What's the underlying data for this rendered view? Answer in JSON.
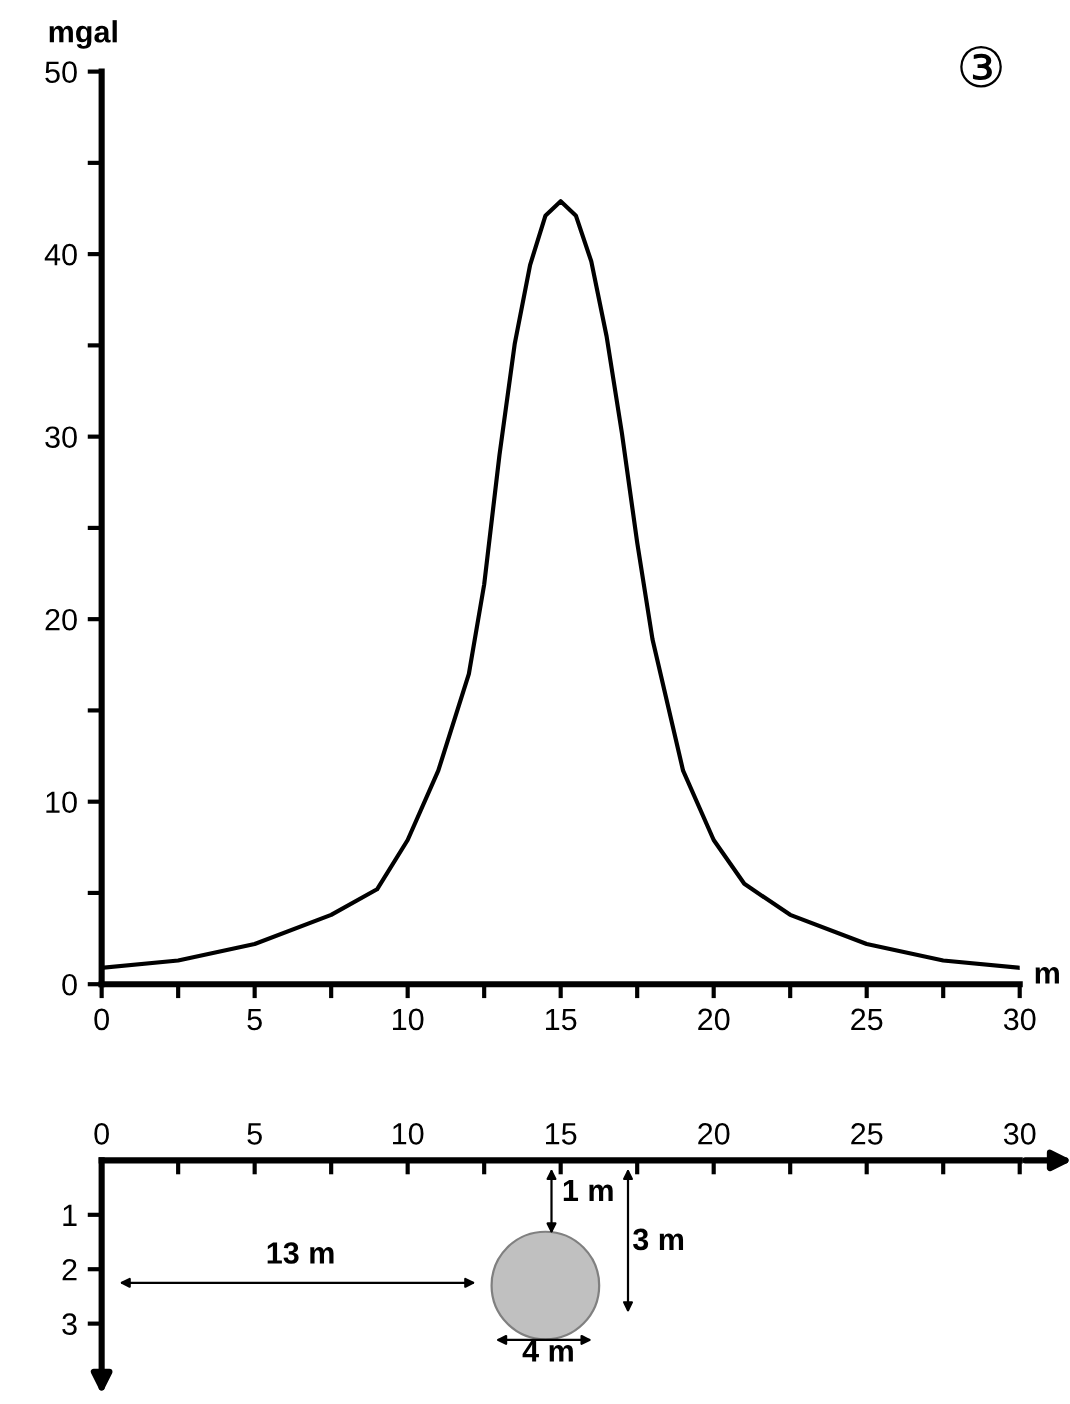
{
  "chart_data": [
    {
      "type": "line",
      "xlabel": "m",
      "ylabel": "mgal",
      "annotations": [
        "③"
      ],
      "x": [
        0,
        2.5,
        5,
        7.5,
        9,
        10,
        11,
        12,
        12.5,
        13,
        13.5,
        14,
        14.5,
        15,
        15.5,
        16,
        16.5,
        17,
        17.5,
        18,
        19,
        20,
        21,
        22.5,
        25,
        27.5,
        30
      ],
      "series": [
        {
          "color": "#000000",
          "values": [
            0.9,
            1.3,
            2.2,
            3.8,
            5.2,
            7.9,
            11.7,
            17,
            21.9,
            29,
            35.1,
            39.4,
            42.1,
            42.9,
            42.1,
            39.6,
            35.5,
            30.2,
            24.2,
            18.9,
            11.7,
            7.9,
            5.5,
            3.8,
            2.2,
            1.3,
            0.9
          ]
        }
      ],
      "xlim": [
        0,
        30
      ],
      "ylim": [
        0,
        50
      ],
      "xticks": [
        0,
        {
          "value": 2.5,
          "label": null
        },
        5,
        {
          "value": 7.5,
          "label": null
        },
        10,
        {
          "value": 12.5,
          "label": null
        },
        15,
        {
          "value": 17.5,
          "label": null
        },
        20,
        {
          "value": 22.5,
          "label": null
        },
        25,
        {
          "value": 27.5,
          "label": null
        },
        30
      ],
      "yticks": [
        0,
        {
          "value": 5,
          "label": null
        },
        10,
        {
          "value": 15,
          "label": null
        },
        20,
        {
          "value": 25,
          "label": null
        },
        30,
        {
          "value": 35,
          "label": null
        },
        40,
        {
          "value": 45,
          "label": null
        },
        50
      ],
      "grid": false,
      "marker": "none",
      "line_style": "solid"
    },
    {
      "type": "scatter",
      "x": [
        14.5
      ],
      "series": [
        {
          "color": "#c0c0c0",
          "values": [
            2.3
          ]
        }
      ],
      "marker": "circle",
      "annotations": [
        "1 m",
        "3 m",
        "13 m",
        "4 m"
      ],
      "xlim": [
        0,
        30
      ],
      "ylim": [
        4,
        0
      ],
      "xticks": [
        0,
        {
          "value": 2.5,
          "label": null
        },
        5,
        {
          "value": 7.5,
          "label": null
        },
        10,
        {
          "value": 12.5,
          "label": null
        },
        15,
        {
          "value": 17.5,
          "label": null
        },
        20,
        {
          "value": 22.5,
          "label": null
        },
        25,
        {
          "value": 27.5,
          "label": null
        },
        30
      ],
      "yticks": [
        1,
        2,
        3
      ]
    }
  ]
}
